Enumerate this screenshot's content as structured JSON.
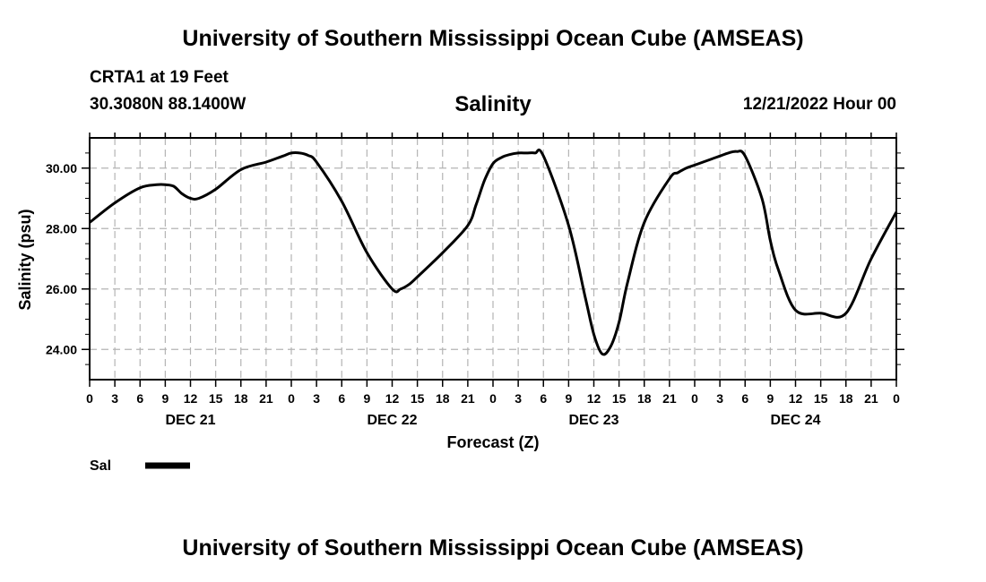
{
  "header": {
    "title": "University of Southern Mississippi Ocean Cube (AMSEAS)",
    "station": "CRTA1 at 19 Feet",
    "coords": "30.3080N  88.1400W",
    "datetime": "12/21/2022 Hour 00"
  },
  "footer": {
    "title": "University of Southern Mississippi Ocean Cube (AMSEAS)"
  },
  "chart_data": {
    "type": "line",
    "title": "Salinity",
    "xlabel": "Forecast (Z)",
    "ylabel": "Salinity (psu)",
    "xlim": [
      0,
      96
    ],
    "ylim": [
      23.0,
      31.0
    ],
    "y_ticks": [
      24.0,
      26.0,
      28.0,
      30.0
    ],
    "y_tick_labels": [
      "24.00",
      "26.00",
      "28.00",
      "30.00"
    ],
    "x_ticks": [
      0,
      3,
      6,
      9,
      12,
      15,
      18,
      21,
      24,
      27,
      30,
      33,
      36,
      39,
      42,
      45,
      48,
      51,
      54,
      57,
      60,
      63,
      66,
      69,
      72,
      75,
      78,
      81,
      84,
      87,
      90,
      93,
      96
    ],
    "x_tick_labels": [
      "0",
      "3",
      "6",
      "9",
      "12",
      "15",
      "18",
      "21",
      "0",
      "3",
      "6",
      "9",
      "12",
      "15",
      "18",
      "21",
      "0",
      "3",
      "6",
      "9",
      "12",
      "15",
      "18",
      "21",
      "0",
      "3",
      "6",
      "9",
      "12",
      "15",
      "18",
      "21",
      "0"
    ],
    "day_labels": [
      {
        "label": "DEC 21",
        "hour": 12
      },
      {
        "label": "DEC 22",
        "hour": 36
      },
      {
        "label": "DEC 23",
        "hour": 60
      },
      {
        "label": "DEC 24",
        "hour": 84
      }
    ],
    "grid": true,
    "series": [
      {
        "name": "Sal",
        "x": [
          0,
          3,
          6,
          8,
          9,
          10,
          11,
          12,
          13,
          15,
          18,
          21,
          23,
          24,
          25,
          26,
          27,
          30,
          33,
          36,
          37,
          38,
          39,
          42,
          45,
          46,
          47,
          48,
          49,
          50,
          51,
          52,
          53,
          54,
          57,
          59,
          60,
          61,
          62,
          63,
          64,
          66,
          69,
          70,
          71,
          72,
          74,
          75,
          76,
          77,
          78,
          80,
          81,
          82,
          84,
          87,
          90,
          93,
          96
        ],
        "y": [
          28.2,
          28.85,
          29.35,
          29.45,
          29.45,
          29.4,
          29.15,
          29.0,
          29.0,
          29.3,
          29.95,
          30.2,
          30.4,
          30.5,
          30.5,
          30.42,
          30.2,
          28.9,
          27.2,
          26.0,
          26.0,
          26.15,
          26.4,
          27.2,
          28.1,
          28.8,
          29.6,
          30.15,
          30.35,
          30.45,
          30.5,
          30.5,
          30.5,
          30.4,
          28.1,
          25.7,
          24.5,
          23.85,
          24.1,
          24.9,
          26.2,
          28.2,
          29.65,
          29.85,
          30.0,
          30.1,
          30.3,
          30.4,
          30.5,
          30.55,
          30.4,
          29.0,
          27.6,
          26.6,
          25.3,
          25.2,
          25.2,
          27.0,
          28.55
        ]
      }
    ],
    "legend": {
      "label": "Sal",
      "position": "bottom-left"
    }
  }
}
